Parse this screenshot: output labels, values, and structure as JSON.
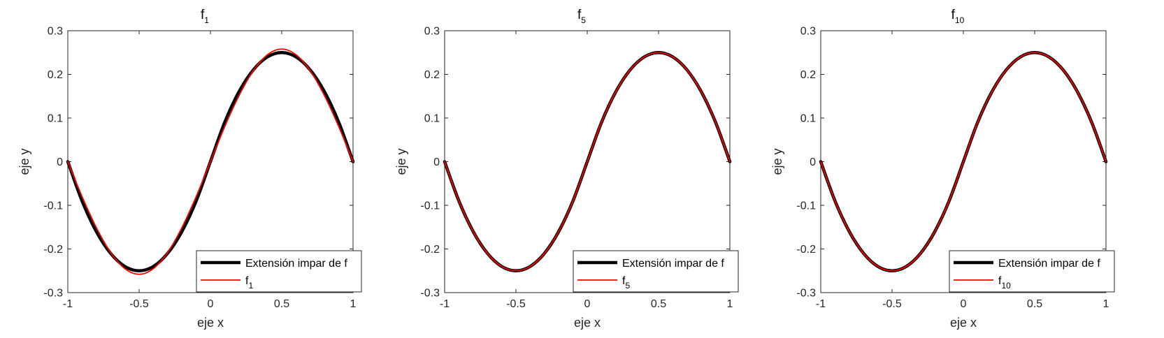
{
  "chart_data": [
    {
      "type": "line",
      "title": {
        "base": "f",
        "sub": "1"
      },
      "xlabel": "eje x",
      "ylabel": "eje y",
      "xlim": [
        -1,
        1
      ],
      "ylim": [
        -0.3,
        0.3
      ],
      "xticks": [
        "-1",
        "-0.5",
        "0",
        "0.5",
        "1"
      ],
      "yticks": [
        "0.3",
        "0.2",
        "0.1",
        "0",
        "-0.1",
        "-0.2",
        "-0.3"
      ],
      "legend_position": "bottom-right",
      "series": [
        {
          "name": "Extensión impar de f",
          "color": "#000000",
          "x": [
            -1,
            -0.9,
            -0.8,
            -0.7,
            -0.6,
            -0.5,
            -0.4,
            -0.3,
            -0.2,
            -0.1,
            0,
            0.1,
            0.2,
            0.3,
            0.4,
            0.5,
            0.6,
            0.7,
            0.8,
            0.9,
            1
          ],
          "y": [
            0,
            -0.09,
            -0.16,
            -0.21,
            -0.24,
            -0.25,
            -0.24,
            -0.21,
            -0.16,
            -0.09,
            0,
            0.09,
            0.16,
            0.21,
            0.24,
            0.25,
            0.24,
            0.21,
            0.16,
            0.09,
            0
          ]
        },
        {
          "name": {
            "base": "f",
            "sub": "1"
          },
          "color": "#ff0000",
          "x": [
            -1,
            -0.9,
            -0.8,
            -0.7,
            -0.6,
            -0.5,
            -0.4,
            -0.3,
            -0.2,
            -0.1,
            0,
            0.1,
            0.2,
            0.3,
            0.4,
            0.5,
            0.6,
            0.7,
            0.8,
            0.9,
            1
          ],
          "y": [
            0,
            -0.08,
            -0.151,
            -0.208,
            -0.245,
            -0.258,
            -0.245,
            -0.208,
            -0.151,
            -0.08,
            0,
            0.08,
            0.151,
            0.208,
            0.245,
            0.258,
            0.245,
            0.208,
            0.151,
            0.08,
            0
          ]
        }
      ]
    },
    {
      "type": "line",
      "title": {
        "base": "f",
        "sub": "5"
      },
      "xlabel": "eje x",
      "ylabel": "eje y",
      "xlim": [
        -1,
        1
      ],
      "ylim": [
        -0.3,
        0.3
      ],
      "xticks": [
        "-1",
        "-0.5",
        "0",
        "0.5",
        "1"
      ],
      "yticks": [
        "0.3",
        "0.2",
        "0.1",
        "0",
        "-0.1",
        "-0.2",
        "-0.3"
      ],
      "legend_position": "bottom-right",
      "series": [
        {
          "name": "Extensión impar de f",
          "color": "#000000",
          "x": [
            -1,
            -0.9,
            -0.8,
            -0.7,
            -0.6,
            -0.5,
            -0.4,
            -0.3,
            -0.2,
            -0.1,
            0,
            0.1,
            0.2,
            0.3,
            0.4,
            0.5,
            0.6,
            0.7,
            0.8,
            0.9,
            1
          ],
          "y": [
            0,
            -0.09,
            -0.16,
            -0.21,
            -0.24,
            -0.25,
            -0.24,
            -0.21,
            -0.16,
            -0.09,
            0,
            0.09,
            0.16,
            0.21,
            0.24,
            0.25,
            0.24,
            0.21,
            0.16,
            0.09,
            0
          ]
        },
        {
          "name": {
            "base": "f",
            "sub": "5"
          },
          "color": "#ff0000",
          "x": [
            -1,
            -0.9,
            -0.8,
            -0.7,
            -0.6,
            -0.5,
            -0.4,
            -0.3,
            -0.2,
            -0.1,
            0,
            0.1,
            0.2,
            0.3,
            0.4,
            0.5,
            0.6,
            0.7,
            0.8,
            0.9,
            1
          ],
          "y": [
            0,
            -0.09,
            -0.16,
            -0.21,
            -0.24,
            -0.25,
            -0.24,
            -0.21,
            -0.16,
            -0.09,
            0,
            0.09,
            0.16,
            0.21,
            0.24,
            0.25,
            0.24,
            0.21,
            0.16,
            0.09,
            0
          ]
        }
      ]
    },
    {
      "type": "line",
      "title": {
        "base": "f",
        "sub": "10"
      },
      "xlabel": "eje x",
      "ylabel": "eje y",
      "xlim": [
        -1,
        1
      ],
      "ylim": [
        -0.3,
        0.3
      ],
      "xticks": [
        "-1",
        "-0.5",
        "0",
        "0.5",
        "1"
      ],
      "yticks": [
        "0.3",
        "0.2",
        "0.1",
        "0",
        "-0.1",
        "-0.2",
        "-0.3"
      ],
      "legend_position": "bottom-right",
      "series": [
        {
          "name": "Extensión impar de f",
          "color": "#000000",
          "x": [
            -1,
            -0.9,
            -0.8,
            -0.7,
            -0.6,
            -0.5,
            -0.4,
            -0.3,
            -0.2,
            -0.1,
            0,
            0.1,
            0.2,
            0.3,
            0.4,
            0.5,
            0.6,
            0.7,
            0.8,
            0.9,
            1
          ],
          "y": [
            0,
            -0.09,
            -0.16,
            -0.21,
            -0.24,
            -0.25,
            -0.24,
            -0.21,
            -0.16,
            -0.09,
            0,
            0.09,
            0.16,
            0.21,
            0.24,
            0.25,
            0.24,
            0.21,
            0.16,
            0.09,
            0
          ]
        },
        {
          "name": {
            "base": "f",
            "sub": "10"
          },
          "color": "#ff0000",
          "x": [
            -1,
            -0.9,
            -0.8,
            -0.7,
            -0.6,
            -0.5,
            -0.4,
            -0.3,
            -0.2,
            -0.1,
            0,
            0.1,
            0.2,
            0.3,
            0.4,
            0.5,
            0.6,
            0.7,
            0.8,
            0.9,
            1
          ],
          "y": [
            0,
            -0.09,
            -0.16,
            -0.21,
            -0.24,
            -0.25,
            -0.24,
            -0.21,
            -0.16,
            -0.09,
            0,
            0.09,
            0.16,
            0.21,
            0.24,
            0.25,
            0.24,
            0.21,
            0.16,
            0.09,
            0
          ]
        }
      ]
    }
  ]
}
